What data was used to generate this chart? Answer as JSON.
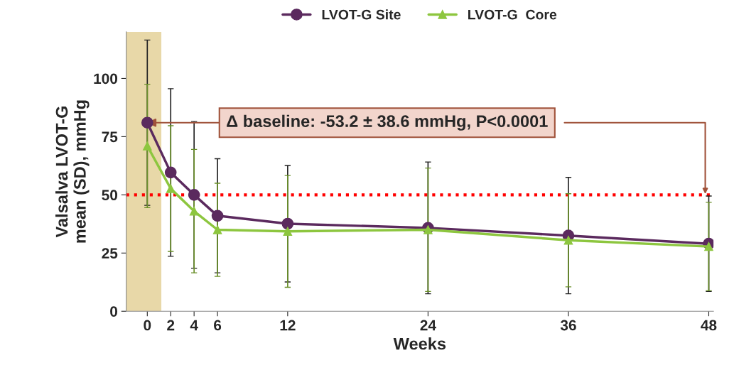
{
  "chart_data": {
    "type": "line",
    "xlabel": "Weeks",
    "ylabel": "Valsalva LVOT-G\nmean (SD), mmHg",
    "x": [
      0,
      2,
      4,
      6,
      12,
      24,
      36,
      48
    ],
    "series": [
      {
        "name": "LVOT-G Site",
        "color": "#5b2a5e",
        "marker": "circle",
        "values": [
          81,
          59.6,
          50,
          41,
          37.6,
          35.8,
          32.5,
          29
        ],
        "errors": [
          35.5,
          36,
          31.5,
          24.5,
          25,
          28.3,
          25,
          20.5
        ]
      },
      {
        "name": "LVOT-G  Core",
        "color": "#8dc63f",
        "marker": "triangle",
        "values": [
          71,
          52.7,
          43,
          35,
          34.3,
          35,
          30.5,
          27.8
        ],
        "errors": [
          26.5,
          27,
          26.5,
          20,
          24,
          26.5,
          20,
          19
        ]
      }
    ],
    "xlim": [
      -1.8,
      48.4
    ],
    "ylim": [
      0,
      120
    ],
    "xticks": [
      0,
      2,
      4,
      6,
      12,
      24,
      36,
      48
    ],
    "yticks": [
      0,
      25,
      50,
      75,
      100
    ],
    "ref_lines": [
      {
        "axis": "y",
        "value": 50,
        "color": "#ff0000",
        "line_style": "dotted"
      }
    ],
    "bands": [
      {
        "axis": "x",
        "from": -1.8,
        "to": 1.2,
        "color": "#e8d8a8"
      }
    ],
    "annotations": [
      {
        "text": "Δ baseline: -53.2 ± 38.6 mmHg, P<0.0001",
        "x": 0,
        "y": 81
      }
    ],
    "grid": false,
    "legend": "top",
    "line_style": "solid"
  }
}
